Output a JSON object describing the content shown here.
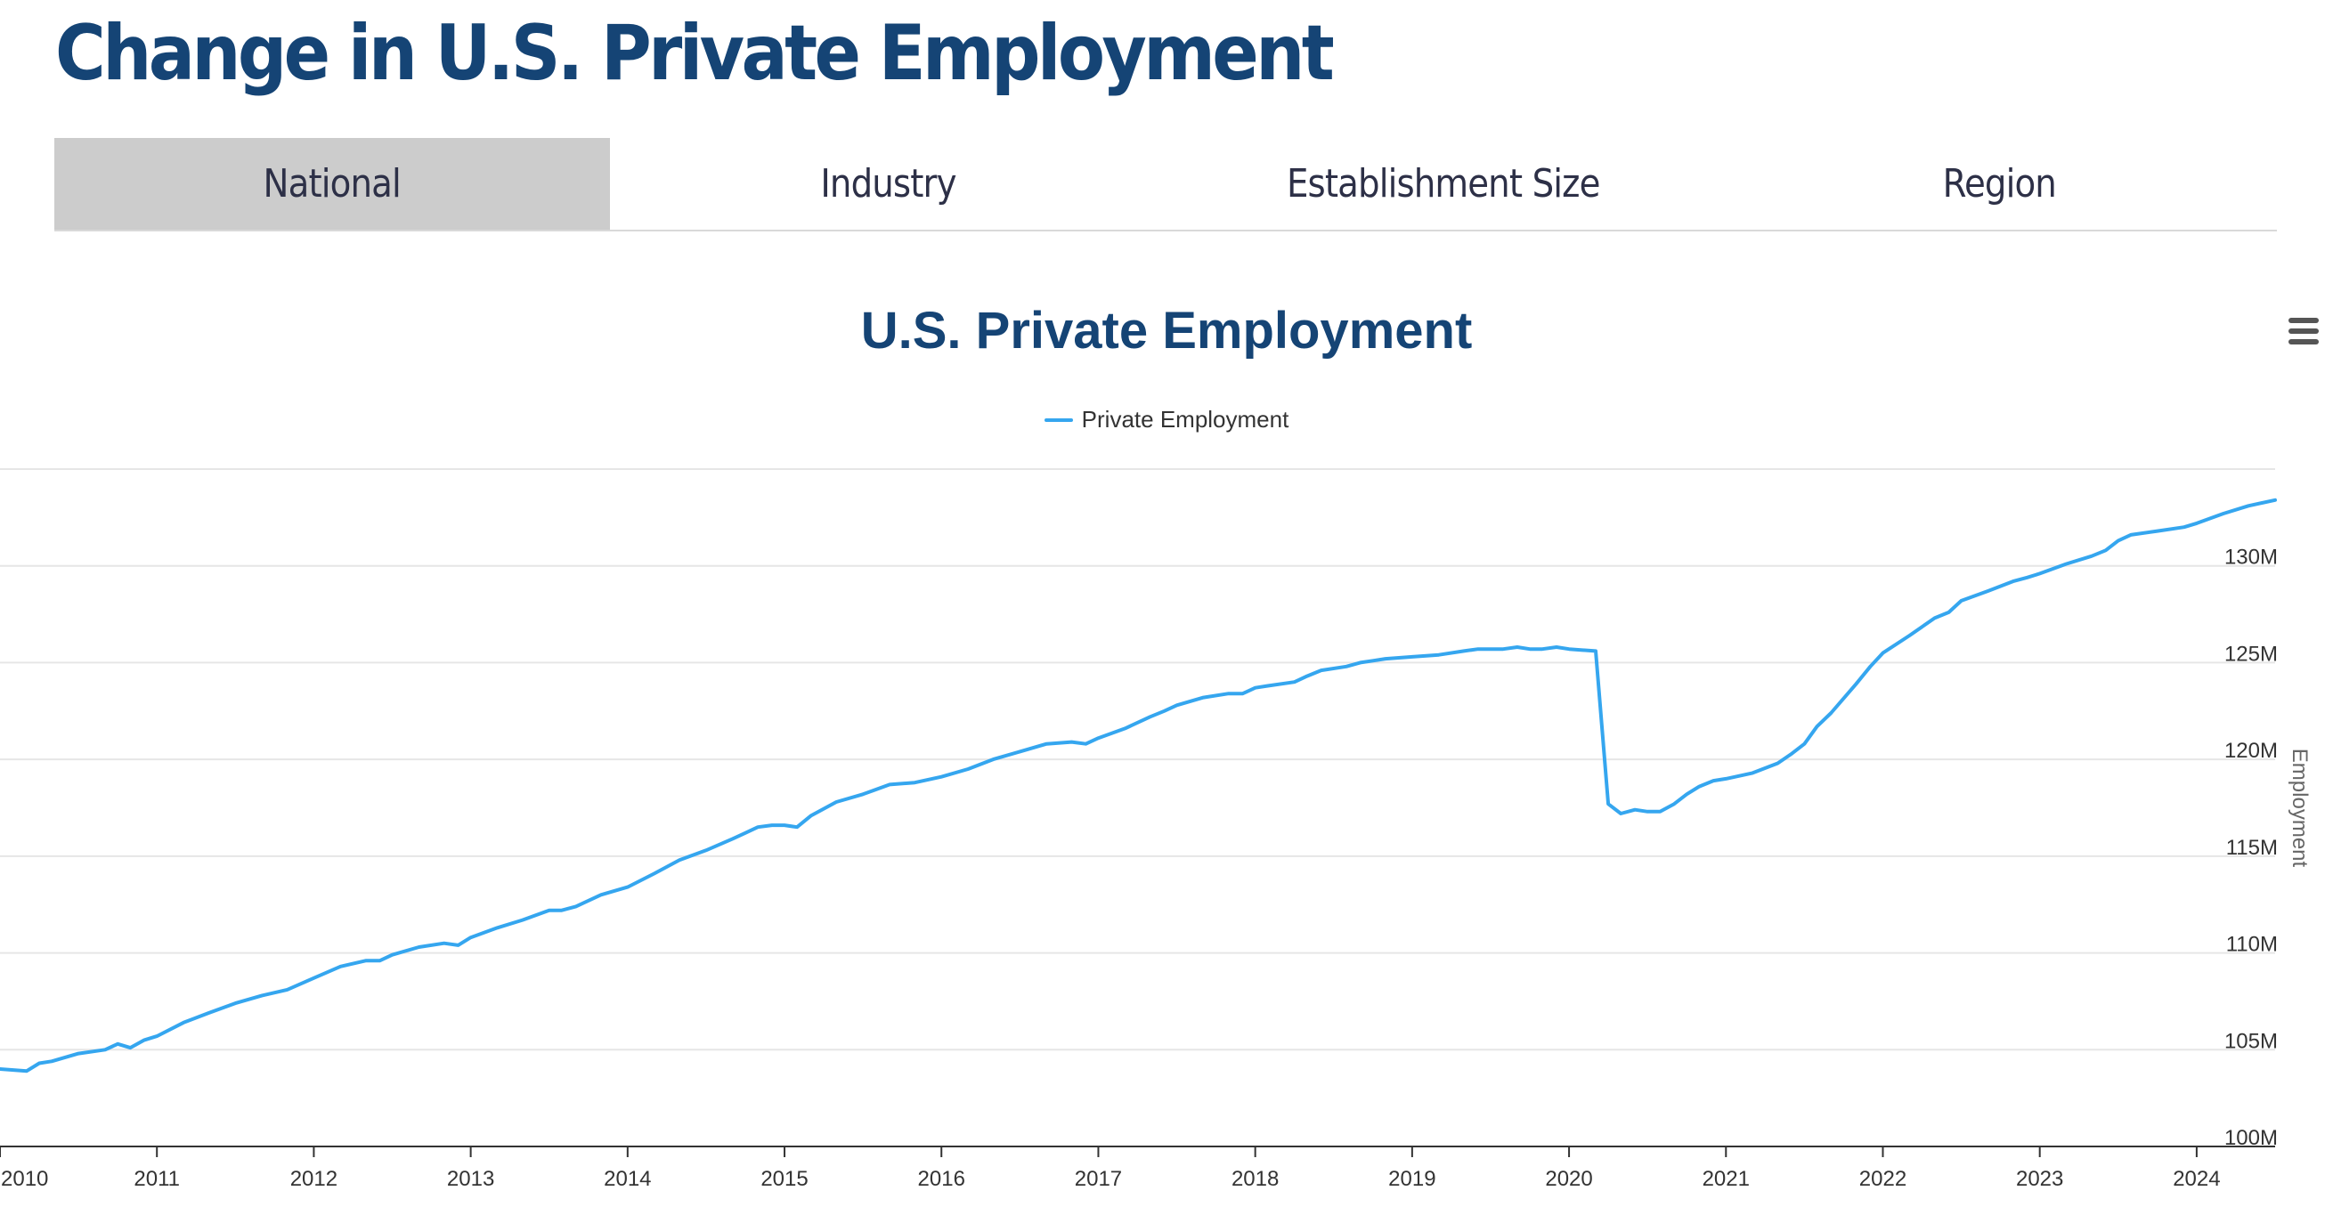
{
  "page": {
    "title": "Change in U.S. Private Employment",
    "title_color": "#154475"
  },
  "tabs": [
    {
      "label": "National",
      "active": true
    },
    {
      "label": "Industry",
      "active": false
    },
    {
      "label": "Establishment Size",
      "active": false
    },
    {
      "label": "Region",
      "active": false
    }
  ],
  "chart_menu": {
    "icon": "hamburger-menu-icon",
    "color": "#555555"
  },
  "chart_data": {
    "type": "line",
    "title": "U.S. Private Employment",
    "title_color": "#154475",
    "ylabel": "Employment",
    "y_axis_side": "right",
    "ylim": [
      100,
      135
    ],
    "y_ticks": [
      100,
      105,
      110,
      115,
      120,
      125,
      130
    ],
    "y_tick_labels": [
      "100M",
      "105M",
      "110M",
      "115M",
      "120M",
      "125M",
      "130M"
    ],
    "x_ticks": [
      2010,
      2011,
      2012,
      2013,
      2014,
      2015,
      2016,
      2017,
      2018,
      2019,
      2020,
      2021,
      2022,
      2023,
      2024
    ],
    "x_tick_labels": [
      "2010",
      "2011",
      "2012",
      "2013",
      "2014",
      "2015",
      "2016",
      "2017",
      "2018",
      "2019",
      "2020",
      "2021",
      "2022",
      "2023",
      "2024"
    ],
    "xlim": [
      2010.0,
      2024.5
    ],
    "grid": true,
    "legend": "top-center",
    "series": [
      {
        "name": "Private Employment",
        "color": "#35a6ef",
        "x": [
          2010.0,
          2010.17,
          2010.25,
          2010.33,
          2010.5,
          2010.67,
          2010.75,
          2010.83,
          2010.92,
          2011.0,
          2011.17,
          2011.33,
          2011.5,
          2011.67,
          2011.83,
          2012.0,
          2012.17,
          2012.33,
          2012.42,
          2012.5,
          2012.67,
          2012.83,
          2012.92,
          2013.0,
          2013.17,
          2013.33,
          2013.5,
          2013.58,
          2013.67,
          2013.83,
          2014.0,
          2014.17,
          2014.33,
          2014.5,
          2014.67,
          2014.75,
          2014.83,
          2014.92,
          2015.0,
          2015.08,
          2015.17,
          2015.33,
          2015.5,
          2015.67,
          2015.83,
          2016.0,
          2016.17,
          2016.33,
          2016.5,
          2016.67,
          2016.83,
          2016.92,
          2017.0,
          2017.17,
          2017.33,
          2017.42,
          2017.5,
          2017.67,
          2017.83,
          2017.92,
          2018.0,
          2018.08,
          2018.25,
          2018.33,
          2018.42,
          2018.58,
          2018.67,
          2018.75,
          2018.83,
          2019.0,
          2019.17,
          2019.33,
          2019.42,
          2019.5,
          2019.58,
          2019.67,
          2019.75,
          2019.83,
          2019.92,
          2020.0,
          2020.17,
          2020.25,
          2020.33,
          2020.42,
          2020.5,
          2020.58,
          2020.67,
          2020.75,
          2020.83,
          2020.92,
          2021.0,
          2021.17,
          2021.33,
          2021.42,
          2021.5,
          2021.58,
          2021.67,
          2021.83,
          2021.92,
          2022.0,
          2022.17,
          2022.33,
          2022.42,
          2022.5,
          2022.67,
          2022.83,
          2022.92,
          2023.0,
          2023.17,
          2023.33,
          2023.42,
          2023.5,
          2023.58,
          2023.75,
          2023.92,
          2024.0,
          2024.17,
          2024.33,
          2024.5
        ],
        "y": [
          104.0,
          103.9,
          104.3,
          104.4,
          104.8,
          105.0,
          105.3,
          105.1,
          105.5,
          105.7,
          106.4,
          106.9,
          107.4,
          107.8,
          108.1,
          108.7,
          109.3,
          109.6,
          109.6,
          109.9,
          110.3,
          110.5,
          110.4,
          110.8,
          111.3,
          111.7,
          112.2,
          112.2,
          112.4,
          113.0,
          113.4,
          114.1,
          114.8,
          115.3,
          115.9,
          116.2,
          116.5,
          116.6,
          116.6,
          116.5,
          117.1,
          117.8,
          118.2,
          118.7,
          118.8,
          119.1,
          119.5,
          120.0,
          120.4,
          120.8,
          120.9,
          120.8,
          121.1,
          121.6,
          122.2,
          122.5,
          122.8,
          123.2,
          123.4,
          123.4,
          123.7,
          123.8,
          124.0,
          124.3,
          124.6,
          124.8,
          125.0,
          125.1,
          125.2,
          125.3,
          125.4,
          125.6,
          125.7,
          125.7,
          125.7,
          125.8,
          125.7,
          125.7,
          125.8,
          125.7,
          125.6,
          117.7,
          117.2,
          117.4,
          117.3,
          117.3,
          117.7,
          118.2,
          118.6,
          118.9,
          119.0,
          119.3,
          119.8,
          120.3,
          120.8,
          121.7,
          122.4,
          123.9,
          124.8,
          125.5,
          126.4,
          127.3,
          127.6,
          128.2,
          128.7,
          129.2,
          129.4,
          129.6,
          130.1,
          130.5,
          130.8,
          131.3,
          131.6,
          131.8,
          132.0,
          132.2,
          132.7,
          133.1,
          133.4
        ]
      }
    ]
  }
}
